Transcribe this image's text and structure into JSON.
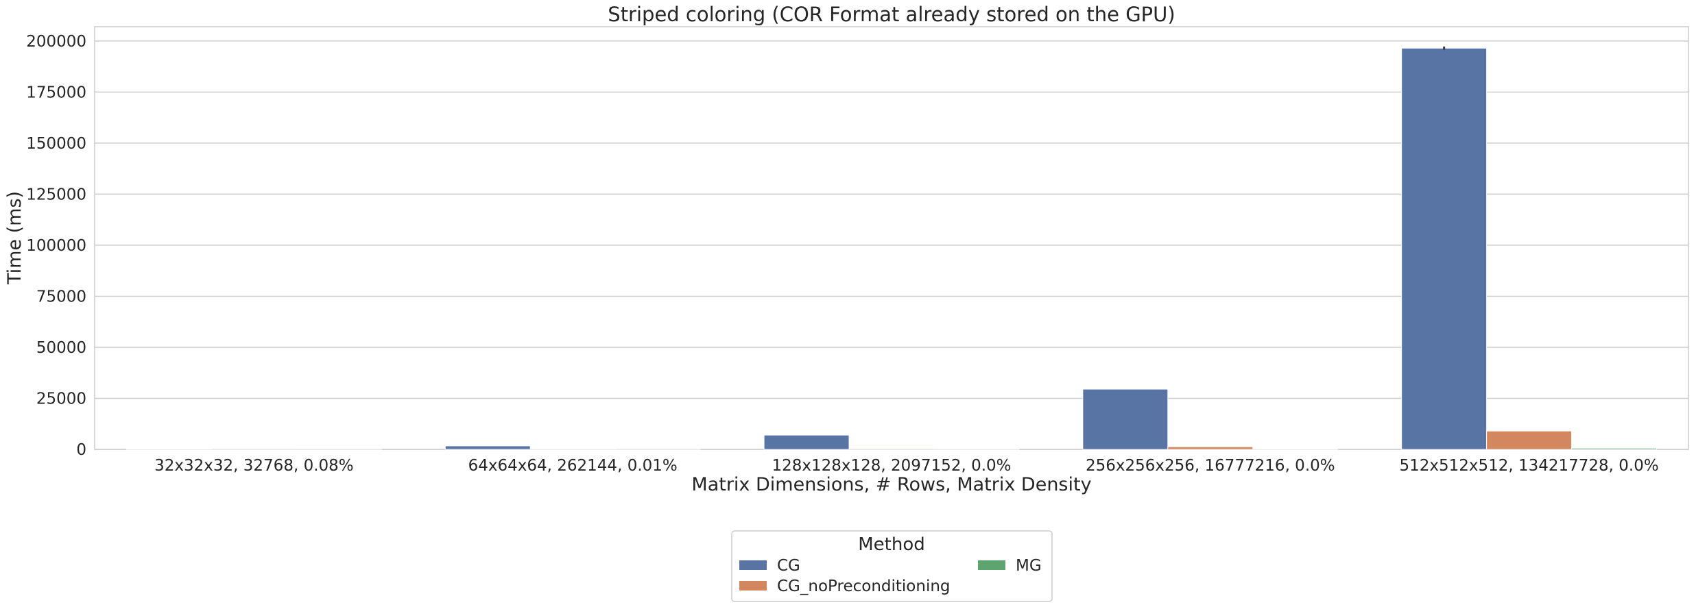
{
  "chart_data": {
    "type": "bar",
    "title": "Striped coloring (COR Format already stored on the GPU)",
    "xlabel": "Matrix Dimensions, # Rows, Matrix Density",
    "ylabel": "Time (ms)",
    "categories": [
      "32x32x32, 32768, 0.08%",
      "64x64x64, 262144, 0.01%",
      "128x128x128, 2097152, 0.0%",
      "256x256x256, 16777216, 0.0%",
      "512x512x512, 134217728, 0.0%"
    ],
    "series": [
      {
        "name": "CG",
        "color": "#5874a4",
        "values": [
          250,
          1700,
          7000,
          29500,
          196500
        ],
        "error": [
          0,
          0,
          0,
          0,
          800
        ]
      },
      {
        "name": "CG_noPreconditioning",
        "color": "#d3875e",
        "values": [
          20,
          120,
          400,
          1300,
          9000
        ],
        "error": [
          0,
          0,
          0,
          0,
          0
        ]
      },
      {
        "name": "MG",
        "color": "#5ea46f",
        "values": [
          10,
          30,
          80,
          250,
          600
        ],
        "error": [
          0,
          0,
          0,
          0,
          0
        ]
      }
    ],
    "ylim": [
      0,
      207000
    ],
    "yticks": [
      0,
      25000,
      50000,
      75000,
      100000,
      125000,
      150000,
      175000,
      200000
    ],
    "grid": true,
    "legend": {
      "title": "Method",
      "placement": "bottom-center",
      "columns": 2
    }
  }
}
